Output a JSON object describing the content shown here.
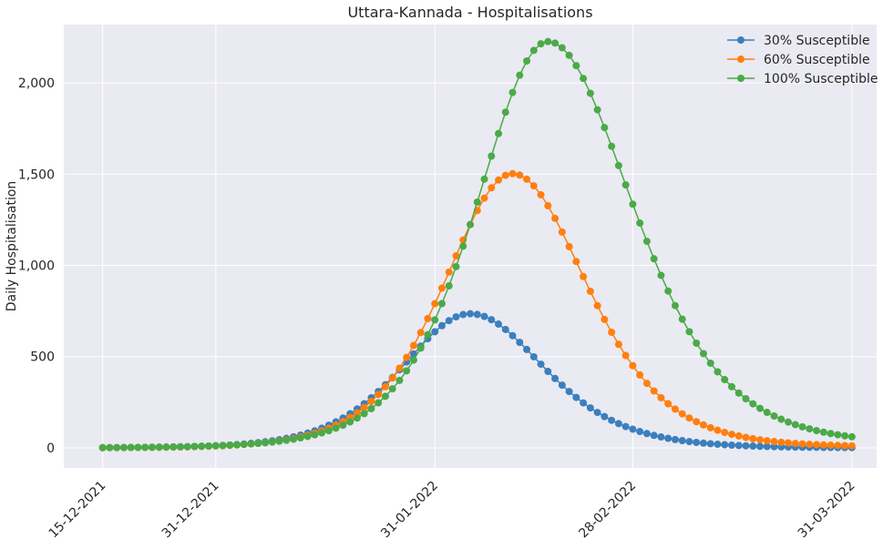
{
  "chart_data": {
    "type": "line",
    "title": "Uttara-Kannada - Hospitalisations",
    "xlabel": "",
    "ylabel": "Daily Hospitalisation",
    "x_start": "15-12-2021",
    "x_end": "31-03-2022",
    "x_ticks": [
      "15-12-2021",
      "31-12-2021",
      "31-01-2022",
      "28-02-2022",
      "31-03-2022"
    ],
    "y_ticks": [
      0,
      500,
      1000,
      1500,
      2000
    ],
    "y_tick_labels": [
      "0",
      "500",
      "1,000",
      "1,500",
      "2,000"
    ],
    "ylim": [
      -110,
      2320
    ],
    "grid": true,
    "legend_position": "top-right",
    "series": [
      {
        "name": "30% Susceptible",
        "color": "#3b7fbd",
        "peak_date": "05-02-2022",
        "peak_value": 735,
        "width_rise": 13,
        "width_fall": 14,
        "tail": 0
      },
      {
        "name": "60% Susceptible",
        "color": "#ff7f0e",
        "peak_date": "11-02-2022",
        "peak_value": 1500,
        "width_rise": 13,
        "width_fall": 14,
        "tail": 5
      },
      {
        "name": "100% Susceptible",
        "color": "#4aaa48",
        "peak_date": "16-02-2022",
        "peak_value": 2215,
        "width_rise": 13.5,
        "width_fall": 16,
        "tail": 20
      }
    ]
  }
}
